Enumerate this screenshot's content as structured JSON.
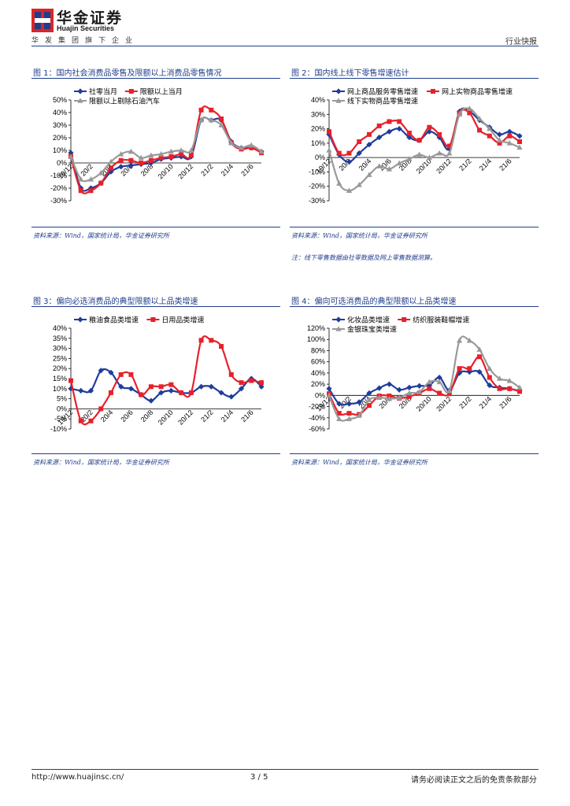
{
  "header": {
    "brand_cn": "华金证券",
    "brand_en": "Huajin Securities",
    "group_line": "华发集团旗下企业",
    "doc_type": "行业快报"
  },
  "figures": [
    {
      "title": "图 1：国内社会消费品零售及限额以上消费品零售情况",
      "source": "资料来源：Wind，国家统计局，华金证券研究所"
    },
    {
      "title": "图 2：国内线上线下零售增速估计",
      "source": "资料来源：Wind，国家统计局，华金证券研究所",
      "note": "注：线下零售数据由社零数据及网上零售数据测算。"
    },
    {
      "title": "图 3：偏向必选消费品的典型限额以上品类增速",
      "source": "资料来源：Wind，国家统计局，华金证券研究所"
    },
    {
      "title": "图 4：偏向可选消费品的典型限额以上品类增速",
      "source": "资料来源：Wind，国家统计局，华金证券研究所"
    }
  ],
  "footer": {
    "url": "http://www.huajinsc.cn/",
    "page": "3 / 5",
    "disclaimer": "请务必阅读正文之后的免责条款部分"
  },
  "colors": {
    "blue": "#1f3d9a",
    "red": "#e8202a",
    "gray": "#999999",
    "accent": "#1f3d8a"
  },
  "chart_data": [
    {
      "type": "line",
      "x": [
        "19/12",
        "20/1",
        "20/2",
        "20/3",
        "20/4",
        "20/5",
        "20/6",
        "20/7",
        "20/8",
        "20/9",
        "20/10",
        "20/11",
        "20/12",
        "21/1",
        "21/2",
        "21/3",
        "21/4",
        "21/5",
        "21/6",
        "21/7"
      ],
      "xticks": [
        "19/12",
        "20/2",
        "20/4",
        "20/6",
        "20/8",
        "20/10",
        "20/12",
        "21/2",
        "21/4",
        "21/6"
      ],
      "yticks": [
        "50%",
        "40%",
        "30%",
        "20%",
        "10%",
        "0%",
        "-10%",
        "-20%",
        "-30%"
      ],
      "ylim": [
        -30,
        50
      ],
      "series": [
        {
          "name": "社零当月",
          "color": "#1f3d9a",
          "marker": "diamond",
          "values": [
            8,
            -20,
            -20,
            -16,
            -7,
            -3,
            -2,
            -1,
            0,
            3,
            4,
            5,
            5,
            34,
            34,
            34,
            17,
            12,
            12,
            9
          ]
        },
        {
          "name": "限额以上当月",
          "color": "#e8202a",
          "marker": "square",
          "values": [
            5,
            -22,
            -22,
            -16,
            -4,
            2,
            2,
            0,
            2,
            4,
            5,
            7,
            6,
            42,
            42,
            35,
            16,
            11,
            12,
            8
          ]
        },
        {
          "name": "限额以上剔除石油汽车",
          "color": "#999999",
          "marker": "triangle",
          "values": [
            5,
            -13,
            -13,
            -8,
            1,
            7,
            9,
            4,
            6,
            7,
            9,
            10,
            10,
            34,
            34,
            30,
            16,
            12,
            14,
            9
          ]
        }
      ]
    },
    {
      "type": "line",
      "x": [
        "19/12",
        "20/1",
        "20/2",
        "20/3",
        "20/4",
        "20/5",
        "20/6",
        "20/7",
        "20/8",
        "20/9",
        "20/10",
        "20/11",
        "20/12",
        "21/1",
        "21/2",
        "21/3",
        "21/4",
        "21/5",
        "21/6",
        "21/7"
      ],
      "xticks": [
        "19/12",
        "20/2",
        "20/4",
        "20/6",
        "20/8",
        "20/10",
        "20/12",
        "21/2",
        "21/4",
        "21/6"
      ],
      "yticks": [
        "40%",
        "30%",
        "20%",
        "10%",
        "0%",
        "-10%",
        "-20%",
        "-30%"
      ],
      "ylim": [
        -30,
        40
      ],
      "series": [
        {
          "name": "网上商品服务零售增速",
          "color": "#1f3d9a",
          "marker": "diamond",
          "values": [
            16,
            2,
            -3,
            3,
            9,
            14,
            18,
            20,
            14,
            12,
            18,
            14,
            6,
            32,
            32,
            26,
            21,
            16,
            18,
            15
          ]
        },
        {
          "name": "网上实物商品零售增速",
          "color": "#e8202a",
          "marker": "square",
          "values": [
            18,
            3,
            3,
            11,
            16,
            22,
            25,
            25,
            17,
            12,
            21,
            16,
            8,
            31,
            31,
            19,
            15,
            10,
            15,
            11
          ]
        },
        {
          "name": "线下实物商品零售增速",
          "color": "#999999",
          "marker": "triangle",
          "values": [
            5,
            -18,
            -23,
            -19,
            -12,
            -6,
            -8,
            -4,
            -1,
            2,
            0,
            3,
            3,
            30,
            34,
            27,
            20,
            12,
            10,
            7
          ]
        }
      ]
    },
    {
      "type": "line",
      "x": [
        "19/12",
        "20/1",
        "20/2",
        "20/3",
        "20/4",
        "20/5",
        "20/6",
        "20/7",
        "20/8",
        "20/9",
        "20/10",
        "20/11",
        "20/12",
        "21/1",
        "21/2",
        "21/3",
        "21/4",
        "21/5",
        "21/6",
        "21/7"
      ],
      "xticks": [
        "19/12",
        "20/2",
        "20/4",
        "20/6",
        "20/8",
        "20/10",
        "20/12",
        "21/2",
        "21/4",
        "21/6"
      ],
      "yticks": [
        "40%",
        "35%",
        "30%",
        "25%",
        "20%",
        "15%",
        "10%",
        "5%",
        "0%",
        "-5%",
        "-10%"
      ],
      "ylim": [
        -10,
        40
      ],
      "series": [
        {
          "name": "粮油食品类增速",
          "color": "#1f3d9a",
          "marker": "diamond",
          "values": [
            10,
            9,
            9,
            19,
            18,
            11,
            10,
            7,
            4,
            8,
            9,
            8,
            8,
            11,
            11,
            8,
            6,
            10,
            15,
            11
          ]
        },
        {
          "name": "日用品类增速",
          "color": "#e8202a",
          "marker": "square",
          "values": [
            14,
            -6,
            -6,
            0,
            8,
            17,
            17,
            7,
            11,
            11,
            12,
            8,
            8,
            34,
            34,
            31,
            17,
            13,
            14,
            13
          ]
        }
      ]
    },
    {
      "type": "line",
      "x": [
        "19/12",
        "20/1",
        "20/2",
        "20/3",
        "20/4",
        "20/5",
        "20/6",
        "20/7",
        "20/8",
        "20/9",
        "20/10",
        "20/11",
        "20/12",
        "21/1",
        "21/2",
        "21/3",
        "21/4",
        "21/5",
        "21/6",
        "21/7"
      ],
      "xticks": [
        "19/12",
        "20/2",
        "20/4",
        "20/6",
        "20/8",
        "20/10",
        "20/12",
        "21/2",
        "21/4",
        "21/6"
      ],
      "yticks": [
        "120%",
        "100%",
        "80%",
        "60%",
        "40%",
        "20%",
        "0%",
        "-20%",
        "-40%",
        "-60%"
      ],
      "ylim": [
        -60,
        120
      ],
      "series": [
        {
          "name": "化妆品类增速",
          "color": "#1f3d9a",
          "marker": "diamond",
          "values": [
            12,
            -15,
            -15,
            -12,
            4,
            13,
            20,
            10,
            14,
            17,
            18,
            32,
            9,
            40,
            42,
            42,
            18,
            14,
            12,
            8
          ]
        },
        {
          "name": "纺织服装鞋帽增速",
          "color": "#e8202a",
          "marker": "square",
          "values": [
            3,
            -32,
            -32,
            -34,
            -18,
            -1,
            -1,
            -5,
            -2,
            4,
            12,
            4,
            3,
            48,
            48,
            69,
            32,
            12,
            12,
            7
          ]
        },
        {
          "name": "金银珠宝类增速",
          "color": "#999999",
          "marker": "triangle",
          "values": [
            0,
            -42,
            -42,
            -36,
            -8,
            -4,
            -6,
            -4,
            4,
            6,
            24,
            24,
            8,
            98,
            98,
            82,
            48,
            30,
            26,
            14
          ]
        }
      ]
    }
  ]
}
